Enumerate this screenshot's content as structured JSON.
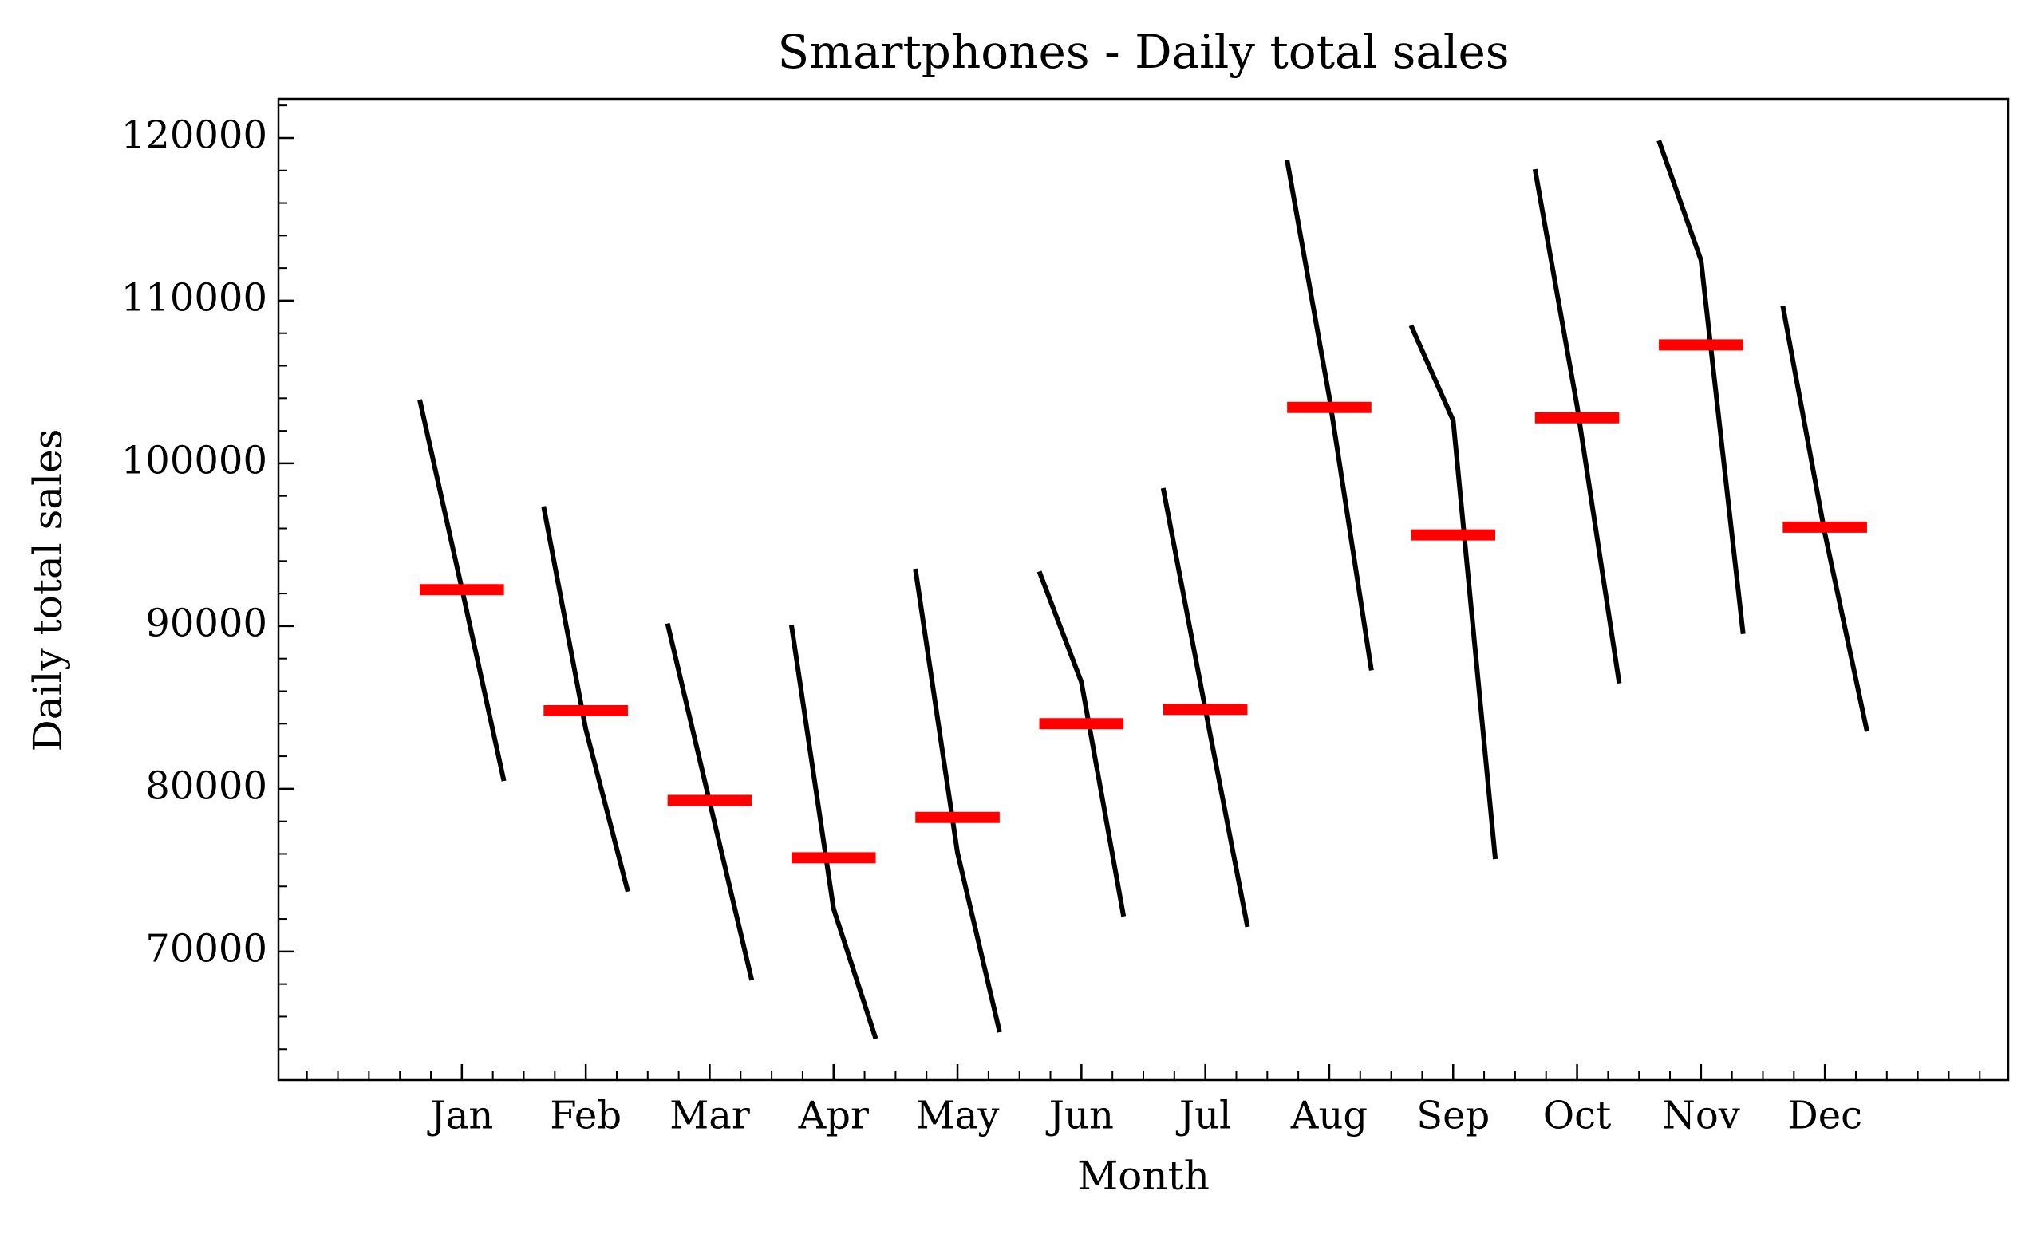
{
  "chart_data": {
    "type": "month_plot",
    "title": "Smartphones - Daily total sales",
    "xlabel": "Month",
    "ylabel": "Daily total sales",
    "categories": [
      "Jan",
      "Feb",
      "Mar",
      "Apr",
      "May",
      "Jun",
      "Jul",
      "Aug",
      "Sep",
      "Oct",
      "Nov",
      "Dec"
    ],
    "values": [
      [
        103920,
        92320,
        80480
      ],
      [
        97360,
        83680,
        73680
      ],
      [
        90160,
        79200,
        68240
      ],
      [
        90080,
        72640,
        64640
      ],
      [
        93520,
        76080,
        65040
      ],
      [
        93360,
        86560,
        72160
      ],
      [
        98480,
        84880,
        71520
      ],
      [
        118640,
        104080,
        87280
      ],
      [
        108480,
        102640,
        75680
      ],
      [
        118080,
        103520,
        86480
      ],
      [
        119840,
        112480,
        89520
      ],
      [
        109680,
        95680,
        83520
      ]
    ],
    "means": [
      92240,
      84800,
      79280,
      75760,
      78240,
      84000,
      84880,
      103440,
      95600,
      102800,
      107280,
      96080
    ],
    "line_color": "#000000",
    "mean_color": "#ff0000",
    "ylim": [
      62100,
      122400
    ],
    "yticks": [
      70000,
      80000,
      90000,
      100000,
      110000,
      120000
    ]
  }
}
